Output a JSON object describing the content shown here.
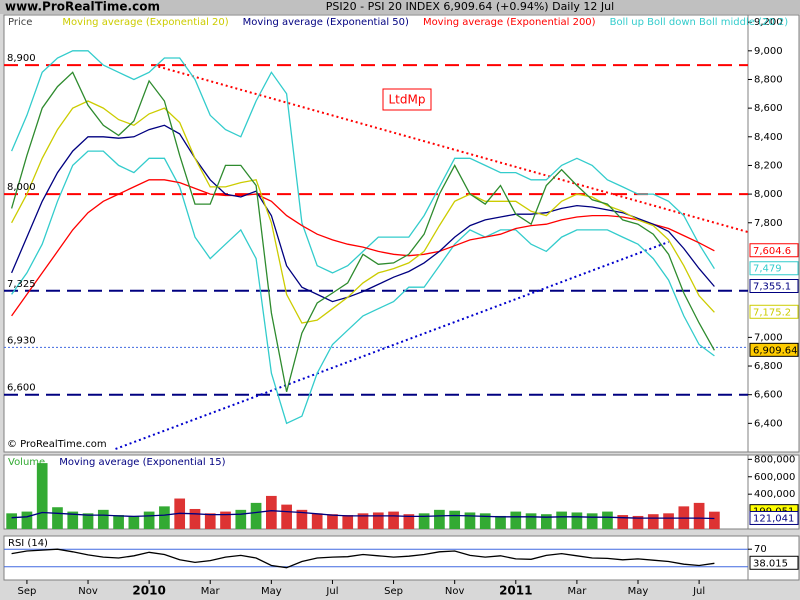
{
  "header": {
    "site": "www.ProRealTime.com",
    "title": "PSI20 - PSI 20 INDEX    6,909.64 (+0.94%)    Daily  12 Jul"
  },
  "chart_data": [
    {
      "type": "line",
      "ylabel": "Price",
      "annotation": "LtdMp",
      "copyright": "© ProRealTime.com",
      "xlim": [
        -0.75,
        23.6
      ],
      "ylim": [
        6200,
        9250
      ],
      "yticks": [
        {
          "value": 6400,
          "label": "6,400"
        },
        {
          "value": 6600,
          "label": "6,600"
        },
        {
          "value": 6800,
          "label": "6,800"
        },
        {
          "value": 7000,
          "label": "7,000"
        },
        {
          "value": 7800,
          "label": "7,800"
        },
        {
          "value": 8000,
          "label": "8,000"
        },
        {
          "value": 8200,
          "label": "8,200"
        },
        {
          "value": 8400,
          "label": "8,400"
        },
        {
          "value": 8600,
          "label": "8,600"
        },
        {
          "value": 8800,
          "label": "8,800"
        },
        {
          "value": 9000,
          "label": "9,000"
        },
        {
          "value": 9200,
          "label": "9,200"
        }
      ],
      "levels": [
        {
          "value": 8900,
          "label": "8,900",
          "color": "#ff0000",
          "style": "dash"
        },
        {
          "value": 8000,
          "label": "8,000",
          "color": "#ff0000",
          "style": "dash"
        },
        {
          "value": 7325,
          "label": "7,325",
          "color": "#000080",
          "style": "dash"
        },
        {
          "value": 6930,
          "label": "6,930",
          "color": "#4169e1",
          "style": "dot"
        },
        {
          "value": 6600,
          "label": "6,600",
          "color": "#000080",
          "style": "dash"
        }
      ],
      "trendlines": [
        {
          "x": [
            4.3,
            23.6
          ],
          "y": [
            8890,
            7735
          ],
          "color": "#ff0000"
        },
        {
          "x": [
            2.9,
            21
          ],
          "y": [
            6221,
            7666
          ],
          "color": "#0000cd"
        }
      ],
      "x": [
        -0.5,
        0,
        0.5,
        1,
        1.5,
        2,
        2.5,
        3,
        3.5,
        4,
        4.5,
        5,
        5.5,
        6,
        6.5,
        7,
        7.5,
        8,
        8.5,
        9,
        9.5,
        10,
        10.5,
        11,
        11.5,
        12,
        12.5,
        13,
        13.5,
        14,
        14.5,
        15,
        15.5,
        16,
        16.5,
        17,
        17.5,
        18,
        18.5,
        19,
        19.5,
        20,
        20.5,
        21,
        21.5,
        22,
        22.5
      ],
      "series": [
        {
          "name": "Boll up Boll down Boll middle (20 2)",
          "type": "band",
          "color": "#33cccc",
          "last_label": "7,479",
          "values": [
            8300,
            8550,
            8850,
            8950,
            9000,
            9000,
            8900,
            8850,
            8800,
            8850,
            8950,
            8950,
            8800,
            8550,
            8450,
            8400,
            8650,
            8850,
            8700,
            7800,
            7500,
            7450,
            7500,
            7600,
            7700,
            7700,
            7700,
            7850,
            8050,
            8250,
            8250,
            8200,
            8150,
            8150,
            8100,
            8100,
            8200,
            8250,
            8200,
            8100,
            8050,
            8000,
            8000,
            7950,
            7850,
            7650,
            7479
          ],
          "lower": [
            7300,
            7450,
            7650,
            7950,
            8200,
            8300,
            8300,
            8200,
            8150,
            8250,
            8250,
            8050,
            7700,
            7550,
            7650,
            7750,
            7550,
            6750,
            6400,
            6450,
            6750,
            6950,
            7050,
            7150,
            7200,
            7250,
            7350,
            7350,
            7500,
            7650,
            7750,
            7700,
            7750,
            7750,
            7650,
            7600,
            7700,
            7750,
            7750,
            7750,
            7700,
            7650,
            7550,
            7400,
            7150,
            6950,
            6871
          ]
        },
        {
          "name": "Moving average (Exponential 200)",
          "color": "#ff0000",
          "last_label": "7,604.6",
          "values": [
            7150,
            7300,
            7450,
            7600,
            7750,
            7870,
            7950,
            8000,
            8050,
            8100,
            8100,
            8080,
            8040,
            8000,
            7990,
            7990,
            8000,
            7950,
            7850,
            7780,
            7720,
            7680,
            7650,
            7630,
            7600,
            7580,
            7570,
            7580,
            7600,
            7640,
            7680,
            7700,
            7720,
            7760,
            7780,
            7790,
            7820,
            7840,
            7850,
            7850,
            7840,
            7820,
            7790,
            7760,
            7710,
            7660,
            7604.6
          ]
        },
        {
          "name": "Moving average (Exponential 50)",
          "color": "#000080",
          "last_label": "7,355.1",
          "values": [
            7450,
            7700,
            7950,
            8150,
            8300,
            8400,
            8400,
            8390,
            8400,
            8450,
            8480,
            8420,
            8250,
            8100,
            8000,
            7980,
            8020,
            7850,
            7500,
            7350,
            7300,
            7250,
            7280,
            7320,
            7370,
            7420,
            7460,
            7520,
            7600,
            7700,
            7780,
            7820,
            7840,
            7860,
            7860,
            7870,
            7900,
            7920,
            7910,
            7890,
            7870,
            7830,
            7790,
            7740,
            7620,
            7480,
            7355.1
          ]
        },
        {
          "name": "Moving average (Exponential 20)",
          "color": "#cccc00",
          "last_label": "7,175.2",
          "values": [
            7800,
            8000,
            8250,
            8450,
            8600,
            8650,
            8600,
            8520,
            8480,
            8560,
            8600,
            8500,
            8250,
            8050,
            8050,
            8080,
            8100,
            7800,
            7300,
            7100,
            7120,
            7200,
            7280,
            7380,
            7450,
            7480,
            7520,
            7600,
            7780,
            7950,
            8000,
            7950,
            7950,
            7950,
            7880,
            7850,
            7950,
            8000,
            7980,
            7920,
            7880,
            7820,
            7780,
            7680,
            7500,
            7290,
            7175.2
          ]
        },
        {
          "name": "Price",
          "color": "#2e8b2e",
          "label_fill": "#ffcc00",
          "last_label": "6,909.64",
          "values": [
            7900,
            8270,
            8600,
            8750,
            8850,
            8620,
            8480,
            8410,
            8510,
            8790,
            8650,
            8270,
            7930,
            7930,
            8200,
            8200,
            8060,
            7170,
            6620,
            7030,
            7240,
            7310,
            7380,
            7580,
            7510,
            7520,
            7580,
            7720,
            8000,
            8200,
            8000,
            7930,
            8060,
            7860,
            7790,
            8060,
            8170,
            8060,
            7960,
            7930,
            7820,
            7790,
            7720,
            7580,
            7310,
            7100,
            6909.64
          ]
        }
      ]
    },
    {
      "type": "bar",
      "xlim": [
        -0.75,
        23.6
      ],
      "ylim": [
        0,
        850000
      ],
      "yticks": [
        {
          "value": 400000,
          "label": "400,000"
        },
        {
          "value": 600000,
          "label": "600,000"
        },
        {
          "value": 800000,
          "label": "800,000"
        }
      ],
      "x": [
        -0.5,
        0,
        0.5,
        1,
        1.5,
        2,
        2.5,
        3,
        3.5,
        4,
        4.5,
        5,
        5.5,
        6,
        6.5,
        7,
        7.5,
        8,
        8.5,
        9,
        9.5,
        10,
        10.5,
        11,
        11.5,
        12,
        12.5,
        13,
        13.5,
        14,
        14.5,
        15,
        15.5,
        16,
        16.5,
        17,
        17.5,
        18,
        18.5,
        19,
        19.5,
        20,
        20.5,
        21,
        21.5,
        22,
        22.5
      ],
      "series": [
        {
          "name": "Volume",
          "type": "bar",
          "color": "#33aa33",
          "down_color": "#dd3333",
          "label_fill": "#ffff00",
          "last_label": "199,051",
          "values": [
            180000,
            200000,
            757000,
            250000,
            200000,
            180000,
            220000,
            160000,
            150000,
            200000,
            260000,
            350000,
            230000,
            180000,
            200000,
            220000,
            300000,
            380000,
            280000,
            220000,
            180000,
            170000,
            160000,
            180000,
            190000,
            200000,
            170000,
            180000,
            220000,
            210000,
            190000,
            180000,
            150000,
            200000,
            180000,
            170000,
            200000,
            190000,
            180000,
            200000,
            160000,
            150000,
            170000,
            180000,
            260000,
            300000,
            199051
          ]
        },
        {
          "name": "Moving average (Exponential 15)",
          "type": "line",
          "color": "#000080",
          "last_label": "121,041",
          "values": [
            130000,
            140000,
            190000,
            180000,
            170000,
            160000,
            160000,
            150000,
            145000,
            150000,
            160000,
            180000,
            175000,
            165000,
            165000,
            170000,
            190000,
            210000,
            200000,
            190000,
            175000,
            160000,
            150000,
            150000,
            150000,
            150000,
            145000,
            145000,
            150000,
            155000,
            150000,
            145000,
            140000,
            140000,
            140000,
            135000,
            140000,
            140000,
            135000,
            135000,
            130000,
            125000,
            125000,
            125000,
            125000,
            125000,
            121041
          ]
        }
      ]
    },
    {
      "type": "line",
      "xlim": [
        -0.75,
        23.6
      ],
      "ylim": [
        0,
        100
      ],
      "yticks": [
        70
      ],
      "levels": [
        {
          "value": 70,
          "color": "#4169e1",
          "style": "solid"
        },
        {
          "value": 30,
          "color": "#4169e1",
          "style": "solid"
        }
      ],
      "xticks": [
        {
          "value": 0,
          "label": "Sep"
        },
        {
          "value": 2,
          "label": "Nov"
        },
        {
          "value": 4,
          "label": "2010"
        },
        {
          "value": 6,
          "label": "Mar"
        },
        {
          "value": 8,
          "label": "May"
        },
        {
          "value": 10,
          "label": "Jul"
        },
        {
          "value": 12,
          "label": "Sep"
        },
        {
          "value": 14,
          "label": "Nov"
        },
        {
          "value": 16,
          "label": "2011"
        },
        {
          "value": 18,
          "label": "Mar"
        },
        {
          "value": 20,
          "label": "May"
        },
        {
          "value": 22,
          "label": "Jul"
        }
      ],
      "x": [
        -0.5,
        0,
        0.5,
        1,
        1.5,
        2,
        2.5,
        3,
        3.5,
        4,
        4.5,
        5,
        5.5,
        6,
        6.5,
        7,
        7.5,
        8,
        8.5,
        9,
        9.5,
        10,
        10.5,
        11,
        11.5,
        12,
        12.5,
        13,
        13.5,
        14,
        14.5,
        15,
        15.5,
        16,
        16.5,
        17,
        17.5,
        18,
        18.5,
        19,
        19.5,
        20,
        20.5,
        21,
        21.5,
        22,
        22.5
      ],
      "series": [
        {
          "name": "RSI (14)",
          "color": "#000000",
          "last_label": "38.015",
          "values": [
            60,
            66,
            68,
            70,
            64,
            57,
            52,
            50,
            55,
            63,
            58,
            46,
            40,
            44,
            52,
            56,
            50,
            33,
            28,
            42,
            50,
            52,
            53,
            58,
            55,
            52,
            54,
            58,
            64,
            66,
            56,
            52,
            55,
            48,
            47,
            56,
            60,
            55,
            50,
            49,
            46,
            48,
            45,
            42,
            36,
            33,
            38.015
          ]
        }
      ]
    }
  ]
}
